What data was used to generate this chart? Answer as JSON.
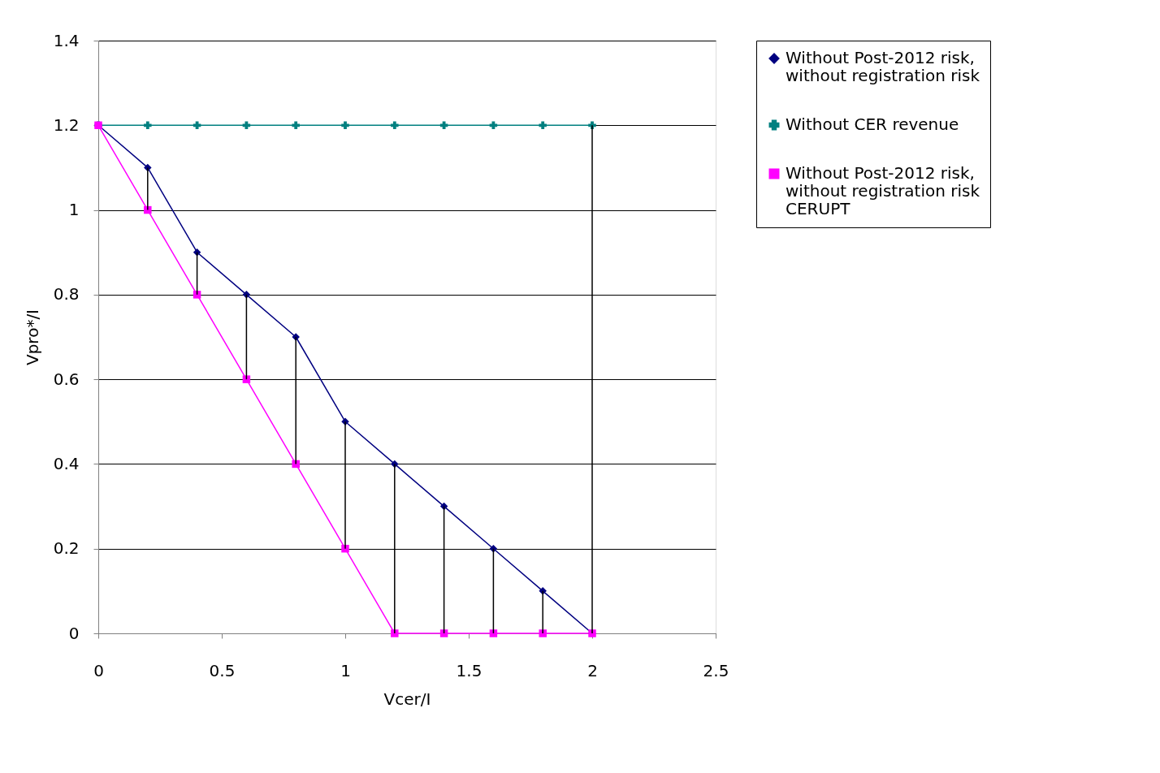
{
  "chart_data": {
    "type": "line",
    "xlabel": "Vcer/I",
    "ylabel": "Vpro*/I",
    "x": [
      0,
      0.2,
      0.4,
      0.6,
      0.8,
      1,
      1.2,
      1.4,
      1.6,
      1.8,
      2
    ],
    "series": [
      {
        "name": "Without Post-2012 risk,\nwithout registration risk",
        "color": "#000080",
        "marker": "diamond",
        "values": [
          1.2,
          1.1,
          0.9,
          0.8,
          0.7,
          0.5,
          0.4,
          0.3,
          0.2,
          0.1,
          0
        ]
      },
      {
        "name": "Without CER revenue",
        "color": "#008080",
        "marker": "cross",
        "values": [
          1.2,
          1.2,
          1.2,
          1.2,
          1.2,
          1.2,
          1.2,
          1.2,
          1.2,
          1.2,
          1.2
        ]
      },
      {
        "name": "Without Post-2012 risk,\nwithout registration risk\nCERUPT",
        "color": "#ff00ff",
        "marker": "square",
        "values": [
          1.2,
          1,
          0.8,
          0.6,
          0.4,
          0.2,
          0,
          0,
          0,
          0,
          0
        ],
        "errors": [
          null,
          [
            1,
            1.1
          ],
          [
            0.8,
            0.9
          ],
          [
            0.6,
            0.8
          ],
          [
            0.4,
            0.7
          ],
          [
            0.2,
            0.5
          ],
          [
            0,
            0.4
          ],
          [
            0,
            0.3
          ],
          [
            0,
            0.2
          ],
          [
            0,
            0.1
          ],
          [
            0,
            1.2
          ]
        ]
      }
    ],
    "xlim": [
      0,
      2.5
    ],
    "xticks": [
      0,
      0.5,
      1,
      1.5,
      2,
      2.5
    ],
    "ylim": [
      0,
      1.4
    ],
    "yticks": [
      0,
      0.2,
      0.4,
      0.6,
      0.8,
      1,
      1.2,
      1.4
    ],
    "grid": "y",
    "legend": "right"
  }
}
